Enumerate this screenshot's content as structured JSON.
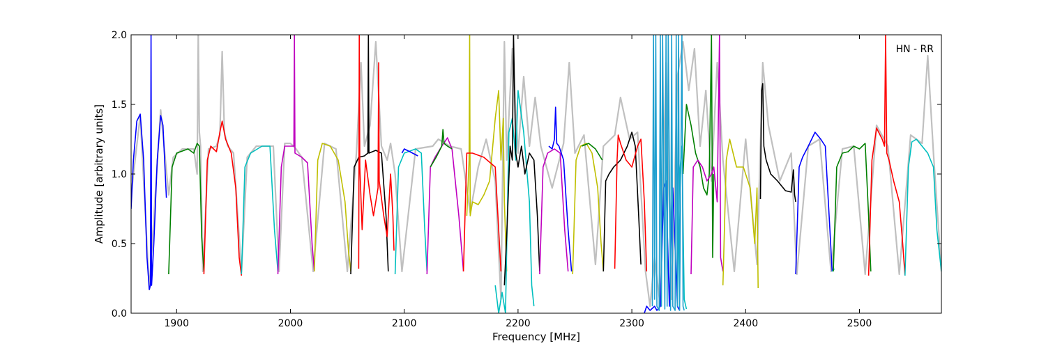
{
  "chart_data": {
    "type": "line",
    "title": "",
    "annotation": "HN - RR",
    "xlabel": "Frequency [MHz]",
    "ylabel": "Amplitude [arbitrary units]",
    "xlim": [
      1860,
      2572
    ],
    "ylim": [
      0.0,
      2.0
    ],
    "xticks": [
      1900,
      2000,
      2100,
      2200,
      2300,
      2400,
      2500
    ],
    "xtick_labels": [
      "1900",
      "2000",
      "2100",
      "2200",
      "2300",
      "2400",
      "2500"
    ],
    "yticks": [
      0.0,
      0.5,
      1.0,
      1.5,
      2.0
    ],
    "ytick_labels": [
      "0.0",
      "0.5",
      "1.0",
      "1.5",
      "2.0"
    ],
    "grid": false,
    "colors": {
      "background_trace": "#c0c0c0",
      "b": "#0000ff",
      "g": "#008000",
      "r": "#ff0000",
      "c": "#00bfbf",
      "m": "#bf00bf",
      "y": "#bfbf00",
      "k": "#000000",
      "spike_cyan": "#1f9fcf"
    },
    "background_trace": {
      "x": [
        1860,
        1868,
        1876,
        1886,
        1893,
        1897,
        1905,
        1915,
        1918,
        1919,
        1920,
        1921,
        1923,
        1928,
        1935,
        1938,
        1940,
        1942,
        1945,
        1950,
        1957,
        1962,
        1970,
        1985,
        1990,
        1995,
        2000,
        2005,
        2010,
        2020,
        2030,
        2040,
        2050,
        2058,
        2062,
        2065,
        2070,
        2075,
        2080,
        2085,
        2088,
        2092,
        2098,
        2110,
        2125,
        2130,
        2140,
        2150,
        2158,
        2165,
        2172,
        2180,
        2185,
        2188,
        2190,
        2195,
        2200,
        2205,
        2210,
        2215,
        2220,
        2230,
        2240,
        2245,
        2250,
        2258,
        2268,
        2275,
        2285,
        2290,
        2298,
        2305,
        2312,
        2316,
        2320,
        2325,
        2330,
        2335,
        2340,
        2345,
        2350,
        2355,
        2360,
        2365,
        2370,
        2375,
        2380,
        2390,
        2400,
        2410,
        2415,
        2420,
        2430,
        2440,
        2445,
        2455,
        2465,
        2475,
        2485,
        2495,
        2505,
        2515,
        2525,
        2535,
        2545,
        2555,
        2560,
        2565,
        2572
      ],
      "y": [
        0.85,
        1.42,
        0.17,
        1.46,
        0.85,
        1.12,
        1.18,
        1.18,
        1.0,
        2.0,
        1.3,
        1.2,
        0.3,
        1.18,
        1.2,
        1.28,
        1.88,
        1.3,
        1.2,
        1.15,
        0.3,
        1.12,
        1.2,
        1.2,
        0.3,
        1.22,
        1.22,
        1.18,
        1.12,
        0.3,
        1.22,
        1.18,
        0.3,
        1.15,
        1.8,
        1.2,
        1.35,
        1.95,
        1.2,
        1.1,
        1.22,
        1.0,
        0.3,
        1.18,
        1.2,
        1.25,
        1.2,
        1.18,
        0.72,
        1.05,
        1.25,
        0.95,
        0.1,
        1.95,
        1.1,
        1.9,
        1.15,
        1.7,
        1.2,
        1.55,
        1.2,
        0.9,
        1.22,
        1.8,
        1.15,
        1.28,
        0.35,
        1.2,
        1.28,
        1.55,
        1.25,
        1.3,
        0.3,
        0.05,
        0.4,
        0.05,
        1.8,
        0.1,
        1.7,
        1.95,
        1.6,
        1.9,
        1.2,
        1.6,
        0.95,
        1.8,
        1.1,
        0.3,
        1.25,
        0.35,
        1.8,
        1.35,
        0.95,
        1.15,
        0.28,
        1.2,
        1.25,
        0.3,
        1.18,
        1.2,
        0.28,
        1.35,
        1.2,
        0.28,
        1.28,
        1.22,
        1.85,
        1.15,
        0.3
      ]
    },
    "series": [
      {
        "color": "b",
        "x": [
          1860,
          1862,
          1865,
          1868,
          1871,
          1874,
          1876,
          1877,
          1877.5,
          1878,
          1880,
          1883,
          1886,
          1888,
          1891
        ],
        "y": [
          0.75,
          1.1,
          1.38,
          1.43,
          1.1,
          0.4,
          0.17,
          0.2,
          2.0,
          0.2,
          0.5,
          1.1,
          1.42,
          1.35,
          0.83
        ]
      },
      {
        "color": "g",
        "x": [
          1893,
          1896,
          1900,
          1910,
          1915,
          1918,
          1920,
          1922,
          1924
        ],
        "y": [
          0.28,
          1.05,
          1.15,
          1.18,
          1.15,
          1.22,
          1.2,
          0.55,
          0.3
        ]
      },
      {
        "color": "r",
        "x": [
          1924,
          1927,
          1930,
          1935,
          1938,
          1940,
          1943,
          1948,
          1952,
          1955,
          1957
        ],
        "y": [
          0.28,
          1.1,
          1.2,
          1.16,
          1.3,
          1.38,
          1.25,
          1.15,
          0.9,
          0.4,
          0.27
        ]
      },
      {
        "color": "c",
        "x": [
          1957,
          1960,
          1965,
          1975,
          1982,
          1986,
          1989
        ],
        "y": [
          0.28,
          1.05,
          1.15,
          1.2,
          1.2,
          0.6,
          0.3
        ]
      },
      {
        "color": "m",
        "x": [
          1989,
          1992,
          1995,
          2000,
          2003,
          2003.5,
          2004,
          2010,
          2015,
          2019,
          2021
        ],
        "y": [
          0.28,
          1.05,
          1.2,
          1.2,
          1.2,
          2.0,
          1.15,
          1.12,
          1.08,
          0.5,
          0.3
        ]
      },
      {
        "color": "y",
        "x": [
          2021,
          2024,
          2028,
          2035,
          2042,
          2048,
          2051,
          2053
        ],
        "y": [
          0.3,
          1.1,
          1.22,
          1.2,
          1.1,
          0.8,
          0.45,
          0.3
        ]
      },
      {
        "color": "k",
        "x": [
          2053,
          2056,
          2060,
          2065,
          2068,
          2068.5,
          2069,
          2075,
          2080,
          2084,
          2086
        ],
        "y": [
          0.28,
          1.05,
          1.12,
          1.13,
          1.15,
          2.0,
          1.15,
          1.17,
          1.15,
          0.7,
          0.3
        ]
      },
      {
        "color": "r",
        "x": [
          2060,
          2060.5,
          2061,
          2063,
          2066,
          2070,
          2073,
          2077,
          2077.5,
          2078,
          2082,
          2085,
          2088,
          2090,
          2091
        ],
        "y": [
          0.32,
          2.0,
          1.05,
          0.6,
          1.1,
          0.85,
          0.7,
          0.9,
          1.8,
          0.95,
          0.7,
          0.55,
          1.0,
          0.7,
          0.45
        ]
      },
      {
        "color": "c",
        "x": [
          2092,
          2095,
          2100,
          2110,
          2115,
          2118,
          2120
        ],
        "y": [
          0.28,
          1.05,
          1.15,
          1.18,
          1.15,
          0.6,
          0.3
        ]
      },
      {
        "color": "b",
        "x": [
          2098,
          2100,
          2105,
          2112
        ],
        "y": [
          1.15,
          1.18,
          1.16,
          1.13
        ]
      },
      {
        "color": "m",
        "x": [
          2120,
          2123,
          2127,
          2133,
          2138,
          2142,
          2148,
          2152
        ],
        "y": [
          0.28,
          1.05,
          1.12,
          1.2,
          1.26,
          1.18,
          0.7,
          0.3
        ]
      },
      {
        "color": "g",
        "x": [
          2123,
          2128,
          2133,
          2134,
          2135,
          2138,
          2142
        ],
        "y": [
          1.05,
          1.12,
          1.2,
          1.32,
          1.22,
          1.2,
          1.18
        ]
      },
      {
        "color": "y",
        "x": [
          2155,
          2157,
          2157.5,
          2158,
          2160,
          2165,
          2170,
          2175,
          2180,
          2183,
          2185,
          2187,
          2188,
          2190
        ],
        "y": [
          0.7,
          1.1,
          2.0,
          0.7,
          0.8,
          0.78,
          0.85,
          0.95,
          1.4,
          1.6,
          1.1,
          1.4,
          0.8,
          0.3
        ]
      },
      {
        "color": "r",
        "x": [
          2152,
          2155,
          2160,
          2170,
          2180,
          2185
        ],
        "y": [
          0.3,
          1.15,
          1.15,
          1.12,
          1.05,
          0.3
        ]
      },
      {
        "color": "c",
        "x": [
          2180,
          2183,
          2186,
          2189,
          2192,
          2195,
          2198,
          2200,
          2205,
          2210,
          2212,
          2214
        ],
        "y": [
          0.2,
          0.0,
          0.15,
          0.0,
          1.3,
          1.4,
          1.1,
          1.6,
          1.3,
          0.8,
          0.2,
          0.05
        ]
      },
      {
        "color": "k",
        "x": [
          2188,
          2190,
          2193,
          2195,
          2196,
          2198,
          2200,
          2203,
          2206,
          2210,
          2214,
          2217,
          2219
        ],
        "y": [
          0.2,
          0.55,
          1.2,
          1.1,
          2.0,
          1.15,
          1.05,
          1.2,
          1.0,
          1.15,
          1.1,
          0.7,
          0.3
        ]
      },
      {
        "color": "m",
        "x": [
          2219,
          2222,
          2226,
          2232,
          2237,
          2241,
          2244
        ],
        "y": [
          0.28,
          1.05,
          1.15,
          1.18,
          1.15,
          0.6,
          0.3
        ]
      },
      {
        "color": "b",
        "x": [
          2227,
          2230,
          2232,
          2233,
          2234,
          2236,
          2240,
          2244,
          2247
        ],
        "y": [
          1.2,
          1.18,
          1.25,
          1.48,
          1.22,
          1.2,
          1.1,
          0.6,
          0.3
        ]
      },
      {
        "color": "y",
        "x": [
          2248,
          2251,
          2255,
          2260,
          2265,
          2270,
          2273,
          2275
        ],
        "y": [
          0.28,
          1.1,
          1.2,
          1.22,
          1.15,
          0.9,
          0.5,
          0.3
        ]
      },
      {
        "color": "g",
        "x": [
          2256,
          2262,
          2268,
          2274
        ],
        "y": [
          1.2,
          1.22,
          1.18,
          1.1
        ]
      },
      {
        "color": "k",
        "x": [
          2275,
          2277,
          2280,
          2284,
          2290,
          2296,
          2300,
          2303,
          2306,
          2308
        ],
        "y": [
          0.3,
          0.95,
          1.0,
          1.05,
          1.1,
          1.2,
          1.3,
          1.2,
          0.7,
          0.35
        ]
      },
      {
        "color": "r",
        "x": [
          2285,
          2287,
          2288,
          2290,
          2295,
          2300,
          2305,
          2308,
          2311,
          2313
        ],
        "y": [
          0.32,
          1.1,
          1.28,
          1.22,
          1.1,
          1.05,
          1.2,
          1.25,
          0.8,
          0.3
        ]
      },
      {
        "color": "b",
        "x": [
          2311,
          2313,
          2316,
          2320,
          2322,
          2325,
          2328,
          2330,
          2333,
          2336,
          2340,
          2342
        ],
        "y": [
          0.0,
          0.05,
          0.02,
          0.05,
          0.02,
          0.05,
          0.9,
          0.95,
          0.05,
          0.9,
          0.05,
          0.02
        ]
      },
      {
        "color": "c",
        "x": [
          2340,
          2342,
          2344,
          2346,
          2348
        ],
        "y": [
          0.05,
          1.0,
          1.2,
          0.1,
          0.03
        ]
      },
      {
        "color": "g",
        "x": [
          2345,
          2348,
          2352,
          2356,
          2360,
          2363,
          2366,
          2368,
          2370,
          2371,
          2372
        ],
        "y": [
          1.0,
          1.5,
          1.35,
          1.15,
          1.05,
          0.9,
          0.85,
          1.0,
          2.0,
          0.4,
          1.0
        ]
      },
      {
        "color": "m",
        "x": [
          2352,
          2354,
          2358,
          2362,
          2366,
          2370,
          2372,
          2375,
          2377,
          2378,
          2380
        ],
        "y": [
          0.28,
          1.05,
          1.1,
          1.05,
          0.95,
          1.0,
          1.05,
          0.8,
          2.0,
          0.4,
          0.3
        ]
      },
      {
        "color": "y",
        "x": [
          2380,
          2383,
          2386,
          2392,
          2398,
          2404,
          2408,
          2410,
          2411
        ],
        "y": [
          0.2,
          1.1,
          1.25,
          1.05,
          1.05,
          0.9,
          0.5,
          0.9,
          0.18
        ]
      },
      {
        "color": "k",
        "x": [
          2413,
          2414,
          2415,
          2416,
          2418,
          2422,
          2428,
          2435,
          2440,
          2442,
          2443,
          2444
        ],
        "y": [
          0.82,
          1.6,
          1.65,
          1.2,
          1.1,
          1.0,
          0.95,
          0.88,
          0.87,
          1.03,
          0.85,
          0.8
        ]
      },
      {
        "color": "b",
        "x": [
          2444,
          2447,
          2450,
          2455,
          2461,
          2466,
          2470,
          2474,
          2476
        ],
        "y": [
          0.28,
          1.05,
          1.12,
          1.2,
          1.3,
          1.25,
          1.2,
          0.6,
          0.3
        ]
      },
      {
        "color": "c",
        "x": [
          2476,
          2478
        ],
        "y": [
          0.3,
          0.32
        ]
      },
      {
        "color": "g",
        "x": [
          2477,
          2480,
          2485,
          2490,
          2495,
          2500,
          2505,
          2508,
          2510
        ],
        "y": [
          0.3,
          1.05,
          1.15,
          1.16,
          1.2,
          1.18,
          1.22,
          0.7,
          0.3
        ]
      },
      {
        "color": "r",
        "x": [
          2508,
          2511,
          2515,
          2520,
          2522,
          2523,
          2524,
          2526,
          2530,
          2535,
          2538,
          2540
        ],
        "y": [
          0.27,
          1.1,
          1.33,
          1.25,
          1.2,
          2.0,
          1.15,
          1.1,
          0.95,
          0.8,
          0.5,
          0.27
        ]
      },
      {
        "color": "c",
        "x": [
          2540,
          2543,
          2546,
          2550,
          2555,
          2560,
          2565,
          2568,
          2572
        ],
        "y": [
          0.27,
          1.05,
          1.23,
          1.25,
          1.2,
          1.15,
          1.05,
          0.6,
          0.3
        ]
      },
      {
        "color": "spike_cyan",
        "x": [
          2318,
          2319,
          2320,
          2321,
          2322,
          2324,
          2325,
          2326,
          2327,
          2329,
          2330,
          2331,
          2332,
          2334,
          2335,
          2336,
          2338,
          2339,
          2340,
          2341,
          2342,
          2344,
          2345,
          2346
        ],
        "y": [
          0.05,
          2.0,
          0.1,
          2.0,
          0.05,
          0.02,
          2.0,
          0.05,
          2.0,
          0.03,
          2.0,
          0.05,
          2.0,
          0.02,
          2.0,
          0.05,
          0.02,
          2.0,
          0.05,
          2.0,
          0.02,
          2.0,
          0.05,
          0.02
        ]
      }
    ]
  }
}
